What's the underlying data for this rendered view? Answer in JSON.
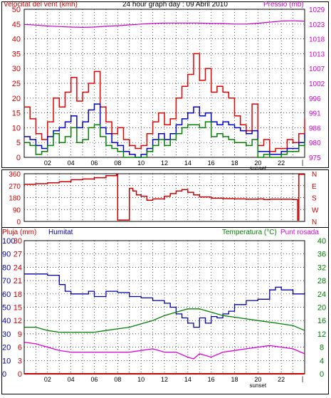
{
  "title": "24 hour graph day : 09 Abril 2010",
  "panels": {
    "wind": {
      "label_left": "Velocitat del vent (kmh)",
      "label_right": "Pressió (mb)"
    },
    "dir": {},
    "rain": {
      "label_left": "Pluja (mm)",
      "label_humidity": "Humitat",
      "label_temp": "Temperatura (°C)",
      "label_dew": "Punt rosada"
    }
  },
  "colors": {
    "wind_gust": "#e80000",
    "wind_avg": "#0000cc",
    "wind_speed": "#008000",
    "pressure": "#cc00cc",
    "direction": "#cc0000",
    "humidity": "#0000aa",
    "temperature": "#008000",
    "dew_point": "#dd00dd",
    "rain": "#cc0000",
    "grid": "#000000"
  },
  "chart_data": [
    {
      "type": "line",
      "title": "24 hour graph day : 09 Abril 2010",
      "ylabel": "Velocitat del vent (kmh)",
      "y2label": "Pressió (mb)",
      "x_ticks": [
        "02",
        "04",
        "06",
        "08",
        "10",
        "12",
        "14",
        "16",
        "18",
        "20",
        "22"
      ],
      "x_marker_label": "sunset",
      "x_marker_hour": 20,
      "x_range_hours": [
        0,
        24
      ],
      "y_ticks": [
        "0",
        "5",
        "10",
        "15",
        "20",
        "25",
        "30",
        "35",
        "40",
        "45",
        "50"
      ],
      "ylim": [
        0,
        50
      ],
      "y2_ticks": [
        "975",
        "980",
        "986",
        "991",
        "996",
        "1002",
        "1007",
        "1013",
        "1018",
        "1023",
        "1029"
      ],
      "y2lim": [
        975,
        1029
      ],
      "grid": true,
      "series": [
        {
          "name": "Pressió",
          "axis": "right",
          "color_key": "pressure",
          "x": [
            0,
            1,
            2,
            3,
            4,
            5,
            6,
            7,
            8,
            9,
            10,
            11,
            12,
            13,
            14,
            15,
            16,
            17,
            18,
            19,
            20,
            21,
            22,
            23,
            24
          ],
          "values": [
            1023.5,
            1023.2,
            1022.9,
            1022.7,
            1022.5,
            1022.4,
            1022.5,
            1022.8,
            1023.0,
            1023.3,
            1023.6,
            1023.8,
            1024.0,
            1024.0,
            1024.0,
            1024.0,
            1023.8,
            1023.8,
            1023.6,
            1023.6,
            1023.9,
            1024.3,
            1024.7,
            1024.8,
            1024.6
          ]
        },
        {
          "name": "gust",
          "axis": "left",
          "color_key": "wind_gust",
          "x": [
            0,
            0.5,
            1,
            1.5,
            2,
            2.5,
            3,
            3.5,
            4,
            4.5,
            5,
            5.5,
            6,
            6.5,
            7,
            7.5,
            8,
            8.5,
            9,
            9.5,
            10,
            10.5,
            11,
            11.5,
            12,
            12.5,
            13,
            13.5,
            14,
            14.5,
            15,
            15.5,
            16,
            16.5,
            17,
            17.5,
            18,
            18.5,
            19,
            19.5,
            20,
            20.5,
            21,
            21.5,
            22,
            22.5,
            23,
            23.5,
            24
          ],
          "values": [
            17,
            13,
            8,
            6,
            12,
            20,
            17,
            22,
            27,
            19,
            22,
            25,
            29,
            17,
            12,
            8,
            10,
            6,
            4,
            3,
            4,
            8,
            12,
            15,
            11,
            13,
            20,
            24,
            28,
            35,
            26,
            30,
            22,
            24,
            22,
            20,
            14,
            11,
            9,
            18,
            4,
            6,
            2,
            3,
            3,
            6,
            5,
            8,
            13
          ]
        },
        {
          "name": "avg",
          "axis": "left",
          "color_key": "wind_avg",
          "x": [
            0,
            0.5,
            1,
            1.5,
            2,
            2.5,
            3,
            3.5,
            4,
            4.5,
            5,
            5.5,
            6,
            6.5,
            7,
            7.5,
            8,
            8.5,
            9,
            9.5,
            10,
            10.5,
            11,
            11.5,
            12,
            12.5,
            13,
            13.5,
            14,
            14.5,
            15,
            15.5,
            16,
            16.5,
            17,
            17.5,
            18,
            18.5,
            19,
            19.5,
            20,
            20.5,
            21,
            21.5,
            22,
            22.5,
            23,
            23.5,
            24
          ],
          "values": [
            7,
            6,
            4,
            3,
            7,
            9,
            10,
            12,
            14,
            10,
            12,
            16,
            18,
            10,
            8,
            5,
            4,
            2,
            1,
            0,
            1,
            3,
            6,
            8,
            6,
            8,
            11,
            13,
            15,
            17,
            14,
            15,
            12,
            11,
            12,
            11,
            10,
            9,
            8,
            9,
            2,
            2,
            1,
            1,
            2,
            3,
            3,
            5,
            8
          ]
        },
        {
          "name": "speed",
          "axis": "left",
          "color_key": "wind_speed",
          "x": [
            0,
            0.5,
            1,
            1.5,
            2,
            2.5,
            3,
            3.5,
            4,
            4.5,
            5,
            5.5,
            6,
            6.5,
            7,
            7.5,
            8,
            8.5,
            9,
            9.5,
            10,
            10.5,
            11,
            11.5,
            12,
            12.5,
            13,
            13.5,
            14,
            14.5,
            15,
            15.5,
            16,
            16.5,
            17,
            17.5,
            18,
            18.5,
            19,
            19.5,
            20,
            20.5,
            21,
            21.5,
            22,
            22.5,
            23,
            23.5,
            24
          ],
          "values": [
            5,
            4,
            1,
            2,
            4,
            8,
            5,
            7,
            10,
            5,
            6,
            10,
            11,
            7,
            4,
            3,
            2,
            0,
            0,
            0,
            0,
            2,
            4,
            6,
            4,
            6,
            8,
            10,
            11,
            11,
            10,
            12,
            7,
            8,
            7,
            6,
            5,
            5,
            4,
            6,
            0,
            1,
            0,
            0,
            1,
            2,
            2,
            4,
            6
          ]
        }
      ]
    },
    {
      "type": "line",
      "ylabel_ticks_left": [
        "0",
        "90",
        "180",
        "270",
        "360"
      ],
      "ylim": [
        0,
        360
      ],
      "y2_ticks": [
        "N",
        "W",
        "S",
        "E",
        "N"
      ],
      "x_range_hours": [
        0,
        24
      ],
      "grid": true,
      "series": [
        {
          "name": "direction",
          "color_key": "direction",
          "x": [
            0,
            1,
            2,
            3,
            4,
            5,
            6,
            7,
            7.9,
            8,
            8.2,
            8.8,
            9,
            9.3,
            9.6,
            10,
            10.5,
            11,
            12,
            12.5,
            13,
            13.5,
            14,
            14.5,
            15,
            16,
            17,
            18,
            19,
            20,
            20.5,
            21,
            22,
            23,
            23.4,
            23.5,
            24
          ],
          "values": [
            280,
            285,
            292,
            300,
            315,
            320,
            330,
            345,
            355,
            10,
            10,
            10,
            250,
            230,
            200,
            190,
            160,
            170,
            190,
            210,
            230,
            240,
            220,
            200,
            185,
            175,
            172,
            170,
            168,
            170,
            165,
            168,
            168,
            165,
            10,
            355,
            360
          ]
        }
      ]
    },
    {
      "type": "line",
      "ylabel": "Pluja (mm)",
      "humidity_label": "Humitat",
      "y2label": "Temperatura (°C)",
      "y2label_b": "Punt rosada",
      "x_ticks": [
        "02",
        "04",
        "06",
        "08",
        "10",
        "12",
        "14",
        "16",
        "18",
        "20",
        "22"
      ],
      "x_marker_label": "sunset",
      "x_marker_hour": 20,
      "x_range_hours": [
        0,
        24
      ],
      "y_ticks_rain": [
        "0",
        "3",
        "6",
        "9",
        "12",
        "15",
        "18",
        "21",
        "24",
        "27",
        "30"
      ],
      "ylim_rain": [
        0,
        30
      ],
      "y_ticks_humidity": [
        "0",
        "10",
        "20",
        "30",
        "40",
        "50",
        "60",
        "70",
        "80",
        "90",
        "100"
      ],
      "ylim_humidity": [
        0,
        100
      ],
      "y2_ticks": [
        "0",
        "4",
        "8",
        "12",
        "16",
        "20",
        "24",
        "28",
        "32",
        "36",
        "40"
      ],
      "y2lim": [
        0,
        40
      ],
      "grid": true,
      "series": [
        {
          "name": "Humitat",
          "axis": "humidity",
          "color_key": "humidity",
          "x": [
            0,
            1,
            2,
            3,
            3.5,
            4,
            5,
            5.5,
            6,
            7,
            8,
            9,
            10,
            11,
            12,
            12.5,
            13,
            13.5,
            14,
            14.5,
            15,
            15.5,
            16,
            16.5,
            17,
            17.5,
            18,
            19,
            20,
            21,
            21.5,
            22,
            23,
            24
          ],
          "values": [
            75,
            75,
            74,
            67,
            62,
            60,
            60,
            62,
            58,
            62,
            61,
            58,
            57,
            55,
            53,
            50,
            45,
            42,
            38,
            35,
            42,
            38,
            43,
            42,
            45,
            47,
            52,
            55,
            56,
            63,
            65,
            63,
            60,
            61
          ]
        },
        {
          "name": "Temperatura",
          "axis": "temp",
          "color_key": "temperature",
          "x": [
            0,
            1,
            2,
            3,
            4,
            5,
            6,
            7,
            8,
            9,
            10,
            11,
            12,
            13,
            14,
            15,
            16,
            17,
            18,
            19,
            20,
            21,
            22,
            23,
            24
          ],
          "values": [
            14,
            14,
            13,
            12.5,
            12.5,
            12.5,
            12.5,
            13,
            13.5,
            14,
            15,
            16,
            17.5,
            18.5,
            19.5,
            19.5,
            18.5,
            17.5,
            17,
            16.5,
            16,
            15.5,
            15,
            14.5,
            13
          ]
        },
        {
          "name": "Punt rosada",
          "axis": "temp",
          "color_key": "dew_point",
          "x": [
            0,
            1,
            2,
            3,
            4,
            5,
            6,
            7,
            8,
            9,
            10,
            11,
            12,
            13,
            14,
            14.5,
            15,
            16,
            17,
            18,
            19,
            20,
            21,
            22,
            23,
            24
          ],
          "values": [
            9.5,
            9,
            8,
            7,
            6.5,
            6.5,
            6.5,
            6.5,
            6.5,
            6.5,
            7,
            7.5,
            6.5,
            6.5,
            5,
            4.5,
            6,
            5,
            6.5,
            7,
            7.5,
            8,
            8.5,
            8,
            7.5,
            6
          ]
        },
        {
          "name": "Pluja",
          "axis": "rain",
          "color_key": "rain",
          "x": [
            0,
            24
          ],
          "values": [
            0,
            0
          ]
        }
      ]
    }
  ]
}
